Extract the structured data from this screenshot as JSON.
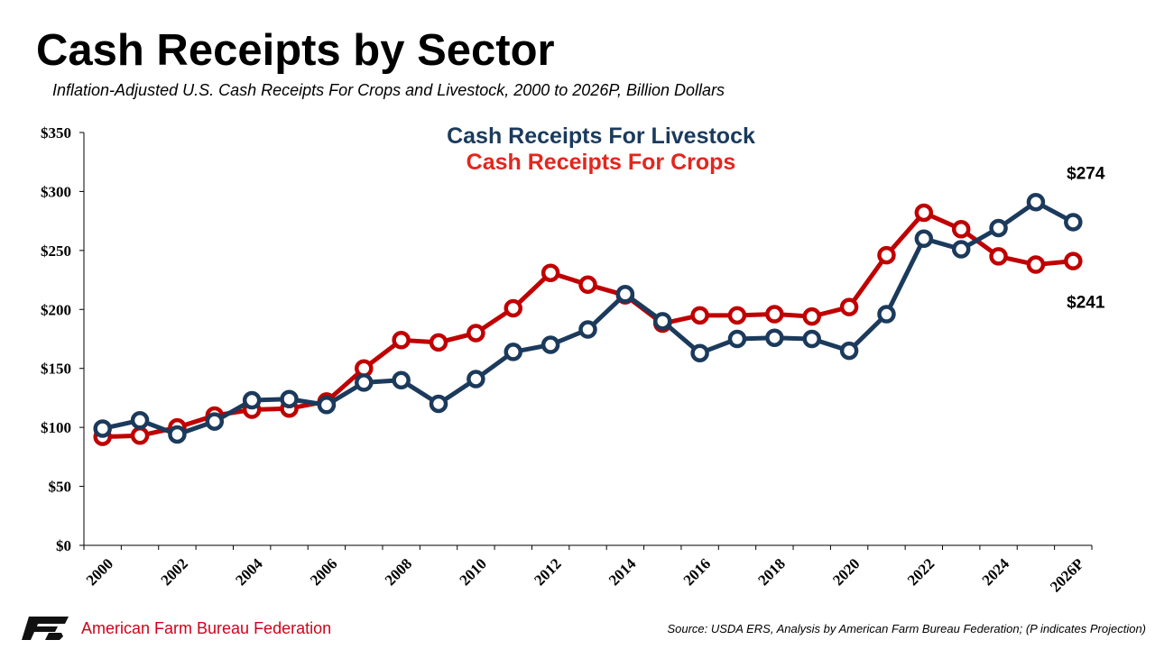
{
  "title": "Cash Receipts by Sector",
  "subtitle": "Inflation-Adjusted U.S. Cash Receipts For Crops and Livestock, 2000 to 2026P, Billion Dollars",
  "footer": {
    "org_name": "American Farm Bureau Federation",
    "logo_text": "FB",
    "source": "Source: USDA ERS, Analysis by American Farm Bureau Federation; (P indicates Projection)"
  },
  "colors": {
    "livestock": "#1b3a5c",
    "crops": "#c00000",
    "marker_fill": "#ffffff"
  },
  "chart_data": {
    "type": "line",
    "x": [
      "2000",
      "2001",
      "2002",
      "2003",
      "2004",
      "2005",
      "2006",
      "2007",
      "2008",
      "2009",
      "2010",
      "2011",
      "2012",
      "2013",
      "2014",
      "2015",
      "2016",
      "2017",
      "2018",
      "2019",
      "2020",
      "2021",
      "2022",
      "2023",
      "2024",
      "2025",
      "2026P"
    ],
    "x_tick_labels": [
      "2000",
      "2002",
      "2004",
      "2006",
      "2008",
      "2010",
      "2012",
      "2014",
      "2016",
      "2018",
      "2020",
      "2022",
      "2024",
      "2026P"
    ],
    "ylim": [
      0,
      350
    ],
    "y_ticks": [
      0,
      50,
      100,
      150,
      200,
      250,
      300,
      350
    ],
    "y_tick_labels": [
      "$0",
      "$50",
      "$100",
      "$150",
      "$200",
      "$250",
      "$300",
      "$350"
    ],
    "grid": false,
    "legend_placement": "top-center",
    "series": [
      {
        "name": "Cash Receipts For Livestock",
        "values": [
          99,
          106,
          94,
          105,
          123,
          124,
          119,
          138,
          140,
          120,
          141,
          164,
          170,
          183,
          213,
          190,
          163,
          175,
          176,
          175,
          165,
          196,
          260,
          251,
          269,
          291,
          274
        ]
      },
      {
        "name": "Cash Receipts For Crops",
        "values": [
          92,
          93,
          100,
          110,
          115,
          116,
          122,
          150,
          174,
          172,
          180,
          201,
          231,
          221,
          212,
          188,
          195,
          195,
          196,
          194,
          202,
          246,
          282,
          268,
          245,
          238,
          241
        ]
      }
    ],
    "annotations": [
      {
        "text": "$274",
        "series": "Cash Receipts For Livestock",
        "x": "2026P"
      },
      {
        "text": "$241",
        "series": "Cash Receipts For Crops",
        "x": "2026P"
      }
    ]
  }
}
